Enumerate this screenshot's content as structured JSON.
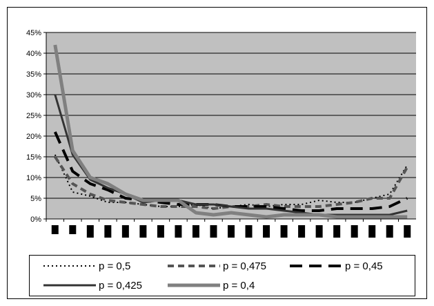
{
  "chart_data": {
    "type": "line",
    "title": "",
    "xlabel": "",
    "ylabel": "",
    "ylim": [
      0,
      45
    ],
    "y_unit": "%",
    "y_ticks": [
      "0%",
      "5%",
      "10%",
      "15%",
      "20%",
      "25%",
      "30%",
      "35%",
      "40%",
      "45%"
    ],
    "x_count": 20,
    "grid": true,
    "plot_background": "#c0c0c0",
    "legend_position": "bottom",
    "series": [
      {
        "name": "p = 0,5",
        "color": "#000000",
        "style": "dotted",
        "values": [
          15.5,
          6.5,
          5.5,
          4.0,
          4.0,
          3.5,
          3.0,
          3.0,
          3.5,
          2.5,
          3.0,
          3.5,
          3.0,
          3.5,
          3.5,
          4.5,
          4.0,
          4.0,
          5.0,
          6.0,
          13.0
        ]
      },
      {
        "name": "p = 0,475",
        "color": "#555555",
        "style": "dashed",
        "values": [
          15.0,
          8.5,
          6.0,
          4.5,
          4.0,
          3.5,
          3.0,
          3.0,
          3.0,
          2.5,
          3.0,
          3.0,
          3.5,
          3.0,
          3.0,
          3.0,
          3.5,
          4.0,
          5.0,
          5.0,
          12.5
        ]
      },
      {
        "name": "p = 0,45",
        "color": "#000000",
        "style": "longdash",
        "values": [
          21.0,
          11.5,
          8.5,
          7.0,
          5.0,
          4.5,
          4.0,
          3.5,
          3.5,
          3.5,
          3.0,
          3.0,
          3.0,
          2.5,
          2.0,
          2.0,
          2.5,
          2.5,
          2.5,
          3.0,
          5.0
        ]
      },
      {
        "name": "p = 0,425",
        "color": "#333333",
        "style": "solid",
        "values": [
          30.0,
          15.5,
          9.5,
          7.5,
          6.0,
          4.0,
          4.5,
          4.5,
          3.5,
          3.5,
          3.0,
          2.5,
          2.5,
          2.0,
          1.5,
          1.0,
          1.0,
          1.0,
          1.0,
          1.0,
          2.0
        ]
      },
      {
        "name": "p = 0,4",
        "color": "#808080",
        "style": "solid-thick",
        "values": [
          42.0,
          16.5,
          10.0,
          8.5,
          6.0,
          4.5,
          4.5,
          4.5,
          1.5,
          1.0,
          1.5,
          1.0,
          0.5,
          1.0,
          1.0,
          1.0,
          0.5,
          0.5,
          0.5,
          0.5,
          0.5
        ]
      }
    ]
  }
}
